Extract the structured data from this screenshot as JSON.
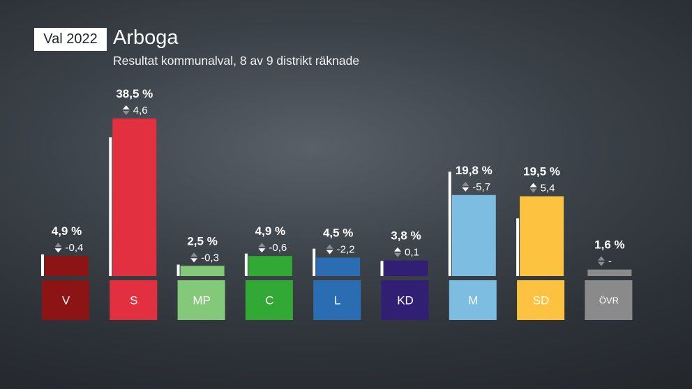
{
  "header": {
    "badge": "Val 2022",
    "title": "Arboga",
    "subtitle": "Resultat kommunalval, 8 av 9 distrikt räknade"
  },
  "chart_data": {
    "type": "bar",
    "title": "Arboga",
    "subtitle": "Resultat kommunalval, 8 av 9 distrikt räknade",
    "unit": "%",
    "categories": [
      "V",
      "S",
      "MP",
      "C",
      "L",
      "KD",
      "M",
      "SD",
      "ÖVR"
    ],
    "values": [
      4.9,
      38.5,
      2.5,
      4.9,
      4.5,
      3.8,
      19.8,
      19.5,
      1.6
    ],
    "value_labels": [
      "4,9 %",
      "38,5 %",
      "2,5 %",
      "4,9 %",
      "4,5 %",
      "3,8 %",
      "19,8 %",
      "19,5 %",
      "1,6 %"
    ],
    "previous_values": [
      5.3,
      33.9,
      2.8,
      5.5,
      6.7,
      3.7,
      25.5,
      14.1,
      null
    ],
    "change": [
      -0.4,
      4.6,
      -0.3,
      -0.6,
      -2.2,
      0.1,
      -5.7,
      5.4,
      null
    ],
    "change_labels": [
      "-0,4",
      "4,6",
      "-0,3",
      "-0,6",
      "-2,2",
      "0,1",
      "-5,7",
      "5,4",
      "-"
    ],
    "colors": [
      "#8c1414",
      "#e33040",
      "#84c87a",
      "#32a835",
      "#2b6db3",
      "#301f73",
      "#7dbde2",
      "#fdc240",
      "#8a8a8a"
    ],
    "label_text_colors": [
      "#ffffff",
      "#ffffff",
      "#ffffff",
      "#ffffff",
      "#ffffff",
      "#ffffff",
      "#ffffff",
      "#ffffff",
      "#ffffff"
    ],
    "previous_marker_color": "#ffffff",
    "legend": "none",
    "grid": false
  }
}
